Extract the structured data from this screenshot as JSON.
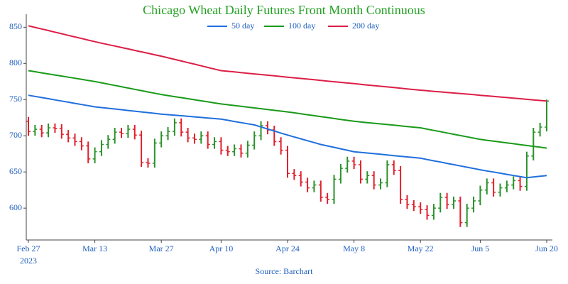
{
  "chart_data": {
    "type": "ohlc",
    "title": "Chicago Wheat Daily Futures Front Month Continuous",
    "source": "Source: Barchart",
    "x_year": "2023",
    "categories": [
      "Feb 27",
      null,
      null,
      null,
      null,
      null,
      null,
      null,
      null,
      null,
      "Mar 13",
      null,
      null,
      null,
      null,
      null,
      null,
      null,
      null,
      null,
      "Mar 27",
      null,
      null,
      null,
      null,
      null,
      null,
      null,
      null,
      "Apr 10",
      null,
      null,
      null,
      null,
      null,
      null,
      null,
      null,
      null,
      "Apr 24",
      null,
      null,
      null,
      null,
      null,
      null,
      null,
      null,
      null,
      "May 8",
      null,
      null,
      null,
      null,
      null,
      null,
      null,
      null,
      null,
      "May 22",
      null,
      null,
      null,
      null,
      null,
      null,
      null,
      null,
      "Jun 5",
      null,
      null,
      null,
      null,
      null,
      null,
      null,
      null,
      null,
      "Jun 20"
    ],
    "ohlc": {
      "up_color": "#2a922a",
      "down_color": "#e0202c",
      "open": [
        720,
        706,
        709,
        704,
        711,
        710,
        702,
        697,
        692,
        686,
        668,
        678,
        688,
        695,
        705,
        703,
        709,
        701,
        663,
        662,
        690,
        700,
        706,
        718,
        705,
        697,
        695,
        700,
        688,
        692,
        680,
        678,
        682,
        676,
        687,
        700,
        714,
        708,
        692,
        680,
        648,
        645,
        636,
        628,
        632,
        615,
        612,
        640,
        655,
        665,
        660,
        640,
        645,
        632,
        635,
        660,
        652,
        612,
        605,
        602,
        598,
        590,
        600,
        615,
        605,
        610,
        580,
        600,
        610,
        625,
        635,
        622,
        628,
        632,
        638,
        630,
        672,
        705,
        712
      ],
      "high": [
        726,
        715,
        715,
        717,
        717,
        716,
        708,
        703,
        698,
        692,
        684,
        694,
        701,
        711,
        711,
        715,
        715,
        707,
        669,
        696,
        706,
        712,
        724,
        724,
        711,
        703,
        706,
        706,
        698,
        698,
        686,
        688,
        688,
        693,
        706,
        720,
        720,
        714,
        698,
        686,
        654,
        651,
        642,
        638,
        638,
        621,
        646,
        661,
        671,
        671,
        666,
        651,
        651,
        641,
        666,
        666,
        658,
        618,
        611,
        608,
        604,
        606,
        621,
        621,
        616,
        616,
        606,
        616,
        631,
        641,
        641,
        634,
        638,
        644,
        644,
        678,
        711,
        718,
        750
      ],
      "low": [
        700,
        700,
        698,
        698,
        704,
        696,
        691,
        686,
        680,
        662,
        662,
        672,
        682,
        689,
        697,
        697,
        695,
        657,
        656,
        656,
        684,
        694,
        700,
        699,
        691,
        689,
        689,
        682,
        682,
        674,
        672,
        672,
        670,
        670,
        681,
        694,
        702,
        686,
        674,
        642,
        639,
        630,
        622,
        622,
        609,
        606,
        606,
        634,
        649,
        654,
        634,
        634,
        626,
        626,
        629,
        646,
        606,
        599,
        596,
        592,
        584,
        584,
        594,
        599,
        599,
        574,
        574,
        594,
        604,
        619,
        616,
        616,
        622,
        626,
        624,
        624,
        666,
        699,
        706
      ],
      "close": [
        706,
        709,
        704,
        711,
        710,
        702,
        697,
        692,
        686,
        668,
        678,
        688,
        695,
        705,
        703,
        709,
        701,
        663,
        662,
        690,
        700,
        706,
        718,
        705,
        697,
        695,
        700,
        688,
        692,
        680,
        678,
        682,
        676,
        687,
        700,
        714,
        708,
        692,
        680,
        648,
        645,
        636,
        628,
        632,
        615,
        612,
        640,
        655,
        665,
        660,
        640,
        645,
        632,
        635,
        660,
        652,
        612,
        605,
        602,
        598,
        590,
        600,
        615,
        605,
        610,
        580,
        600,
        610,
        625,
        635,
        622,
        628,
        632,
        638,
        630,
        672,
        705,
        712,
        748
      ]
    },
    "series": [
      {
        "name": "50 day",
        "color": "#1f6fdc",
        "values": [
          756,
          754.4,
          752.8,
          751.2,
          749.6,
          748,
          746.4,
          744.8,
          743.2,
          741.6,
          740,
          739,
          738,
          737,
          736,
          735,
          734,
          733,
          732,
          731,
          730,
          729.2,
          728.4,
          727.7,
          726.9,
          726.1,
          725.3,
          724.6,
          723.8,
          723,
          721.4,
          719.8,
          718.2,
          716.6,
          715,
          712.2,
          709.4,
          706.6,
          703.8,
          701,
          698.4,
          695.8,
          693.2,
          690.6,
          688,
          686,
          684,
          682,
          680,
          678,
          677.1,
          676.2,
          675.3,
          674.4,
          673.5,
          672.6,
          671.7,
          670.8,
          669.9,
          669,
          667.2,
          665.4,
          663.7,
          661.9,
          660.1,
          658.3,
          656.6,
          654.8,
          653,
          651.4,
          649.9,
          648.3,
          646.7,
          645.1,
          643.6,
          642,
          643,
          644,
          645
        ]
      },
      {
        "name": "100 day",
        "color": "#1a9a1a",
        "values": [
          790,
          788.5,
          787,
          785.5,
          784,
          782.5,
          781,
          779.5,
          778,
          776.5,
          775,
          773.2,
          771.4,
          769.6,
          767.8,
          766,
          764.2,
          762.4,
          760.6,
          758.8,
          757,
          755.6,
          754.1,
          752.7,
          751.2,
          749.8,
          748.3,
          746.9,
          745.4,
          744,
          742.9,
          741.8,
          740.7,
          739.6,
          738.5,
          737.4,
          736.3,
          735.2,
          734.1,
          733,
          731.7,
          730.4,
          729.1,
          727.8,
          726.5,
          725.2,
          723.9,
          722.6,
          721.3,
          720,
          719.1,
          718.2,
          717.3,
          716.4,
          715.5,
          714.6,
          713.7,
          712.8,
          711.9,
          711,
          709.2,
          707.4,
          705.7,
          703.9,
          702.1,
          700.3,
          698.6,
          696.8,
          695,
          693.8,
          692.6,
          691.4,
          690.2,
          689,
          687.8,
          686.6,
          685.4,
          684.2,
          683
        ]
      },
      {
        "name": "200 day",
        "color": "#dc1e46",
        "values": [
          852,
          849.8,
          847.6,
          845.4,
          843.2,
          841,
          838.8,
          836.6,
          834.4,
          832.2,
          830,
          828,
          826,
          824,
          822,
          820,
          818,
          816,
          814,
          812,
          810,
          807.8,
          805.6,
          803.3,
          801.1,
          798.9,
          796.7,
          794.4,
          792.2,
          790,
          789.1,
          788.2,
          787.3,
          786.4,
          785.5,
          784.6,
          783.7,
          782.8,
          781.9,
          781,
          780.1,
          779.2,
          778.3,
          777.4,
          776.5,
          775.6,
          774.7,
          773.8,
          772.9,
          772,
          771.1,
          770.2,
          769.3,
          768.4,
          767.5,
          766.6,
          765.7,
          764.8,
          763.9,
          763,
          762.2,
          761.4,
          760.7,
          759.9,
          759.1,
          758.3,
          757.6,
          756.8,
          756,
          755.2,
          754.4,
          753.6,
          752.8,
          752,
          751.2,
          750.4,
          749.6,
          748.8,
          748
        ]
      }
    ],
    "ylim": [
      556,
      868
    ],
    "yticks": [
      600,
      650,
      700,
      750,
      800,
      850
    ],
    "title_color": "#22a022"
  }
}
